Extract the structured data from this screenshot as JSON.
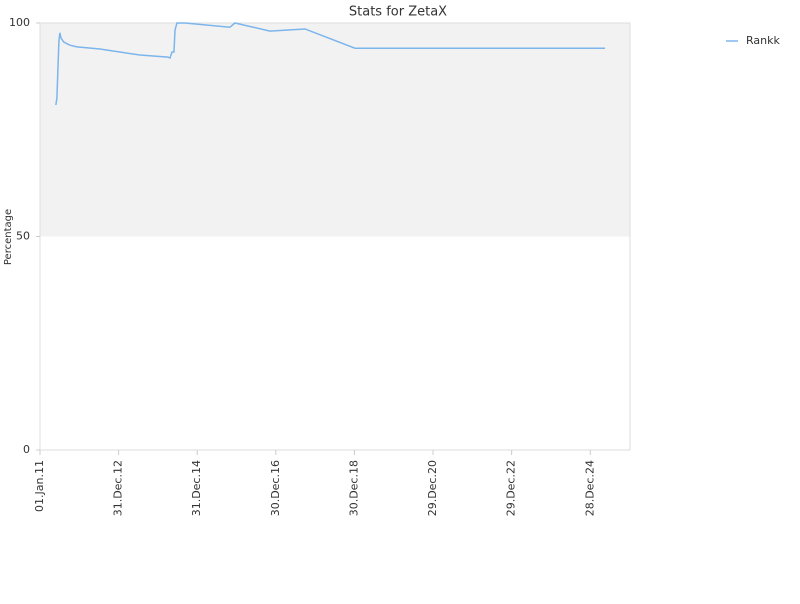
{
  "chart_data": {
    "type": "line",
    "title": "Stats for ZetaX",
    "y_label": "Percentage",
    "x": [
      "2011-05-28",
      "2011-06-07",
      "2011-06-16",
      "2011-06-26",
      "2011-07-05",
      "2011-07-14",
      "2011-08-11",
      "2011-10-06",
      "2011-12-10",
      "2012-07-10",
      "2013-07-17",
      "2014-04-04",
      "2014-04-22",
      "2014-05-11",
      "2014-05-29",
      "2014-06-08",
      "2014-06-26",
      "2014-09-08",
      "2015-10-30",
      "2015-12-16",
      "2016-11-06",
      "2017-05-11",
      "2017-09-27",
      "2019-01-04",
      "2025-05-14"
    ],
    "series": [
      {
        "name": "Rankk",
        "color": "#7cb5ec",
        "values": [
          80.8,
          82.4,
          89,
          96,
          97.7,
          96.5,
          95.5,
          94.8,
          94.4,
          93.9,
          92.5,
          92,
          91.8,
          93.2,
          93.2,
          98.4,
          100,
          100,
          99,
          100,
          98.1,
          98.4,
          98.6,
          94.1,
          94.1
        ]
      }
    ],
    "xlim": [
      "2011-01-01",
      "2026-01-01"
    ],
    "xticks": [
      {
        "value": "2011-01-01",
        "label": "01.Jan.11"
      },
      {
        "value": "2012-12-31",
        "label": "31.Dec.12"
      },
      {
        "value": "2014-12-31",
        "label": "31.Dec.14"
      },
      {
        "value": "2016-12-30",
        "label": "30.Dec.16"
      },
      {
        "value": "2018-12-30",
        "label": "30.Dec.18"
      },
      {
        "value": "2020-12-29",
        "label": "29.Dec.20"
      },
      {
        "value": "2022-12-29",
        "label": "29.Dec.22"
      },
      {
        "value": "2024-12-28",
        "label": "28.Dec.24"
      }
    ],
    "ylim": [
      0,
      100
    ],
    "yticks": [
      0,
      50,
      100
    ],
    "band": {
      "from": 50,
      "to": 100,
      "color": "#f2f2f2"
    },
    "legend": "top-right"
  }
}
